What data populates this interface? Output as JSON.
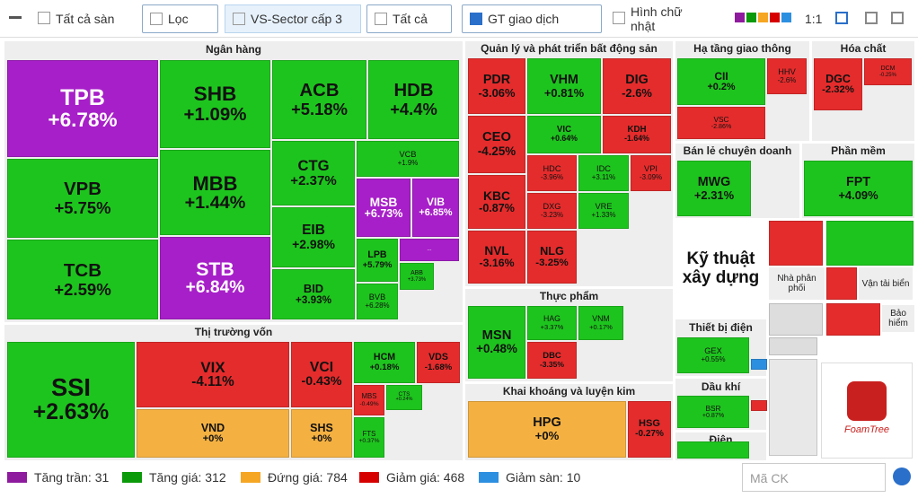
{
  "toolbar": [
    "Tất cả sàn",
    "Lọc",
    "VS-Sector cấp 3",
    "Tất cả",
    "GT giao dịch",
    "Hình chữ nhật",
    "1:1"
  ],
  "sectors": [
    {
      "name": "Ngân hàng",
      "tiles": [
        {
          "code": "TPB",
          "change": "+6.78%",
          "color": "#a71fc8"
        },
        {
          "code": "VPB",
          "change": "+5.75%",
          "color": "#1ec41e"
        },
        {
          "code": "TCB",
          "change": "+2.59%",
          "color": "#1ec41e"
        },
        {
          "code": "SHB",
          "change": "+1.09%",
          "color": "#1ec41e"
        },
        {
          "code": "MBB",
          "change": "+1.44%",
          "color": "#1ec41e"
        },
        {
          "code": "STB",
          "change": "+6.84%",
          "color": "#a71fc8"
        },
        {
          "code": "ACB",
          "change": "+5.18%",
          "color": "#1ec41e"
        },
        {
          "code": "CTG",
          "change": "+2.37%",
          "color": "#1ec41e"
        },
        {
          "code": "EIB",
          "change": "+2.98%",
          "color": "#1ec41e"
        },
        {
          "code": "BID",
          "change": "+3.93%",
          "color": "#1ec41e"
        },
        {
          "code": "HDB",
          "change": "+4.4%",
          "color": "#1ec41e"
        },
        {
          "code": "VCB",
          "change": "+1.9%",
          "color": "#1ec41e"
        },
        {
          "code": "MSB",
          "change": "+6.73%",
          "color": "#a71fc8"
        },
        {
          "code": "VIB",
          "change": "+6.85%",
          "color": "#a71fc8"
        },
        {
          "code": "LPB",
          "change": "+5.79%",
          "color": "#1ec41e"
        },
        {
          "code": "BVB",
          "change": "+6.28%",
          "color": "#1ec41e"
        },
        {
          "code": "...",
          "change": "",
          "color": "#a71fc8"
        },
        {
          "code": "ABB",
          "change": "+3.73%",
          "color": "#1ec41e"
        }
      ]
    },
    {
      "name": "Thị trường vốn",
      "tiles": [
        {
          "code": "SSI",
          "change": "+2.63%",
          "color": "#1ec41e"
        },
        {
          "code": "VIX",
          "change": "-4.11%",
          "color": "#e42c2c"
        },
        {
          "code": "VND",
          "change": "+0%",
          "color": "#f4b142"
        },
        {
          "code": "VCI",
          "change": "-0.43%",
          "color": "#e42c2c"
        },
        {
          "code": "SHS",
          "change": "+0%",
          "color": "#f4b142"
        },
        {
          "code": "HCM",
          "change": "+0.18%",
          "color": "#1ec41e"
        },
        {
          "code": "VDS",
          "change": "-1.68%",
          "color": "#e42c2c"
        },
        {
          "code": "MBS",
          "change": "-0.49%",
          "color": "#e42c2c"
        },
        {
          "code": "CTS",
          "change": "+0.24%",
          "color": "#1ec41e"
        },
        {
          "code": "FTS",
          "change": "+0.37%",
          "color": "#1ec41e"
        }
      ]
    },
    {
      "name": "Quản lý và phát triển bất động sản",
      "tiles": [
        {
          "code": "PDR",
          "change": "-3.06%",
          "color": "#e42c2c"
        },
        {
          "code": "VHM",
          "change": "+0.81%",
          "color": "#1ec41e"
        },
        {
          "code": "DIG",
          "change": "-2.6%",
          "color": "#e42c2c"
        },
        {
          "code": "CEO",
          "change": "-4.25%",
          "color": "#e42c2c"
        },
        {
          "code": "VIC",
          "change": "+0.64%",
          "color": "#1ec41e"
        },
        {
          "code": "KDH",
          "change": "-1.64%",
          "color": "#e42c2c"
        },
        {
          "code": "KBC",
          "change": "-0.87%",
          "color": "#e42c2c"
        },
        {
          "code": "NVL",
          "change": "-3.16%",
          "color": "#e42c2c"
        },
        {
          "code": "HDC",
          "change": "-3.96%",
          "color": "#e42c2c"
        },
        {
          "code": "IDC",
          "change": "+3.11%",
          "color": "#1ec41e"
        },
        {
          "code": "VPI",
          "change": "-3.09%",
          "color": "#e42c2c"
        },
        {
          "code": "DXG",
          "change": "-3.23%",
          "color": "#e42c2c"
        },
        {
          "code": "VRE",
          "change": "+1.33%",
          "color": "#1ec41e"
        },
        {
          "code": "NLG",
          "change": "-3.25%",
          "color": "#e42c2c"
        }
      ]
    },
    {
      "name": "Thực phẩm",
      "tiles": [
        {
          "code": "MSN",
          "change": "+0.48%",
          "color": "#1ec41e"
        },
        {
          "code": "HAG",
          "change": "+3.37%",
          "color": "#1ec41e"
        },
        {
          "code": "VNM",
          "change": "+0.17%",
          "color": "#1ec41e"
        },
        {
          "code": "DBC",
          "change": "-3.35%",
          "color": "#e42c2c"
        }
      ]
    },
    {
      "name": "Khai khoáng và luyện kim",
      "tiles": [
        {
          "code": "HPG",
          "change": "+0%",
          "color": "#f4b142"
        },
        {
          "code": "HSG",
          "change": "-0.27%",
          "color": "#e42c2c"
        }
      ]
    },
    {
      "name": "Hạ tầng giao thông",
      "tiles": [
        {
          "code": "CII",
          "change": "+0.2%",
          "color": "#1ec41e"
        },
        {
          "code": "VSC",
          "change": "-2.86%",
          "color": "#e42c2c"
        },
        {
          "code": "HHV",
          "change": "-2.6%",
          "color": "#e42c2c"
        }
      ]
    },
    {
      "name": "Hóa chất",
      "tiles": [
        {
          "code": "DGC",
          "change": "-2.32%",
          "color": "#e42c2c"
        },
        {
          "code": "DCM",
          "change": "-0.25%",
          "color": "#e42c2c"
        }
      ]
    },
    {
      "name": "Bán lẻ chuyên doanh",
      "tiles": [
        {
          "code": "MWG",
          "change": "+2.31%",
          "color": "#1ec41e"
        }
      ]
    },
    {
      "name": "Phần mềm",
      "tiles": [
        {
          "code": "FPT",
          "change": "+4.09%",
          "color": "#1ec41e"
        }
      ]
    },
    {
      "name": "Kỹ thuật xây dựng",
      "tiles": []
    },
    {
      "name": "Thiết bị điện",
      "tiles": [
        {
          "code": "GEX",
          "change": "+0.55%",
          "color": "#1ec41e"
        }
      ]
    },
    {
      "name": "Dầu khí",
      "tiles": [
        {
          "code": "BSR",
          "change": "+0.87%",
          "color": "#1ec41e"
        }
      ]
    },
    {
      "name": "Điện",
      "tiles": []
    },
    {
      "name": "Nhà phân phối",
      "tiles": []
    },
    {
      "name": "Vận tải biển",
      "tiles": []
    },
    {
      "name": "Bảo hiểm",
      "tiles": []
    }
  ],
  "logo": "FoamTree",
  "legend": [
    {
      "label": "Tăng trần: 31",
      "color": "#8e1b9e"
    },
    {
      "label": "Tăng giá: 312",
      "color": "#0a9a0a"
    },
    {
      "label": "Đứng giá: 784",
      "color": "#f5a623"
    },
    {
      "label": "Giảm giá: 468",
      "color": "#d60000"
    },
    {
      "label": "Giảm sàn: 10",
      "color": "#2d8fe0"
    }
  ],
  "search_placeholder": "Mã CK"
}
